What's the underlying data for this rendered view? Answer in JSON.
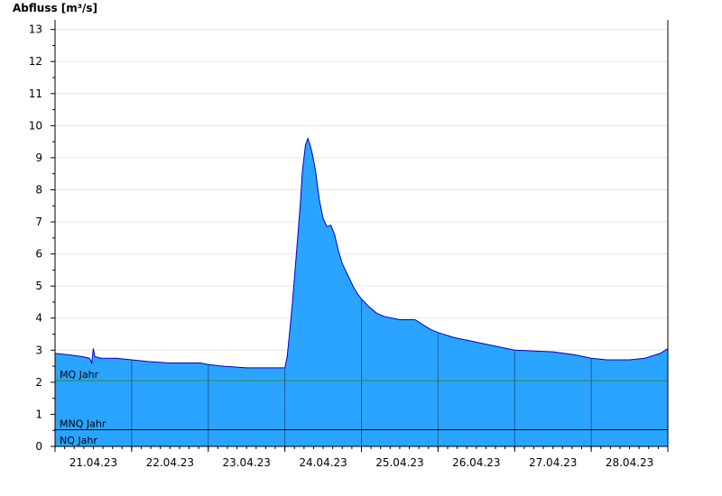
{
  "chart_data": {
    "type": "area",
    "title": "",
    "ylabel": "Abfluss [m³/s]",
    "xlabel": "",
    "ylim": [
      0,
      13.3
    ],
    "yticks": [
      0,
      1,
      2,
      3,
      4,
      5,
      6,
      7,
      8,
      9,
      10,
      11,
      12,
      13
    ],
    "xlim": [
      0,
      8
    ],
    "xtick_positions": [
      0,
      1,
      2,
      3,
      4,
      5,
      6,
      7,
      8
    ],
    "x_labels": [
      {
        "pos": 0.5,
        "text": "21.04.23"
      },
      {
        "pos": 1.5,
        "text": "22.04.23"
      },
      {
        "pos": 2.5,
        "text": "23.04.23"
      },
      {
        "pos": 3.5,
        "text": "24.04.23"
      },
      {
        "pos": 4.5,
        "text": "25.04.23"
      },
      {
        "pos": 5.5,
        "text": "26.04.23"
      },
      {
        "pos": 6.5,
        "text": "27.04.23"
      },
      {
        "pos": 7.5,
        "text": "28.04.23"
      }
    ],
    "grid": true,
    "fill_color": "#2aa4ff",
    "line_color": "#0000cc",
    "series": [
      {
        "x": [
          0,
          0.2,
          0.35,
          0.45,
          0.48,
          0.5,
          0.52,
          0.55,
          0.6,
          0.8,
          1.0,
          1.2,
          1.5,
          1.7,
          1.9,
          2.0,
          2.2,
          2.5,
          2.8,
          2.95,
          3.0,
          3.03,
          3.06,
          3.1,
          3.15,
          3.2,
          3.23,
          3.27,
          3.3,
          3.33,
          3.36,
          3.4,
          3.45,
          3.5,
          3.55,
          3.6,
          3.65,
          3.7,
          3.75,
          3.8,
          3.85,
          3.9,
          3.95,
          4.0,
          4.1,
          4.2,
          4.3,
          4.5,
          4.7,
          4.8,
          4.9,
          5.0,
          5.2,
          5.5,
          6.0,
          6.5,
          6.8,
          7.0,
          7.2,
          7.5,
          7.7,
          7.9,
          8.0
        ],
        "values": [
          2.9,
          2.85,
          2.8,
          2.75,
          2.6,
          3.05,
          2.8,
          2.78,
          2.75,
          2.75,
          2.7,
          2.65,
          2.6,
          2.6,
          2.6,
          2.55,
          2.5,
          2.45,
          2.45,
          2.45,
          2.45,
          2.8,
          3.5,
          4.5,
          6.0,
          7.5,
          8.6,
          9.4,
          9.6,
          9.4,
          9.1,
          8.6,
          7.7,
          7.1,
          6.85,
          6.9,
          6.6,
          6.1,
          5.7,
          5.45,
          5.2,
          4.95,
          4.75,
          4.6,
          4.35,
          4.15,
          4.05,
          3.95,
          3.95,
          3.8,
          3.65,
          3.55,
          3.4,
          3.25,
          3.0,
          2.95,
          2.85,
          2.75,
          2.7,
          2.7,
          2.75,
          2.9,
          3.05
        ]
      }
    ],
    "reference_lines": [
      {
        "label": "MQ Jahr",
        "value": 2.05,
        "color": "#2e8b3a"
      },
      {
        "label": "MNQ Jahr",
        "value": 0.52,
        "color": "#000000"
      },
      {
        "label": "NQ Jahr",
        "value": 0.0,
        "color": "#000000"
      }
    ]
  }
}
